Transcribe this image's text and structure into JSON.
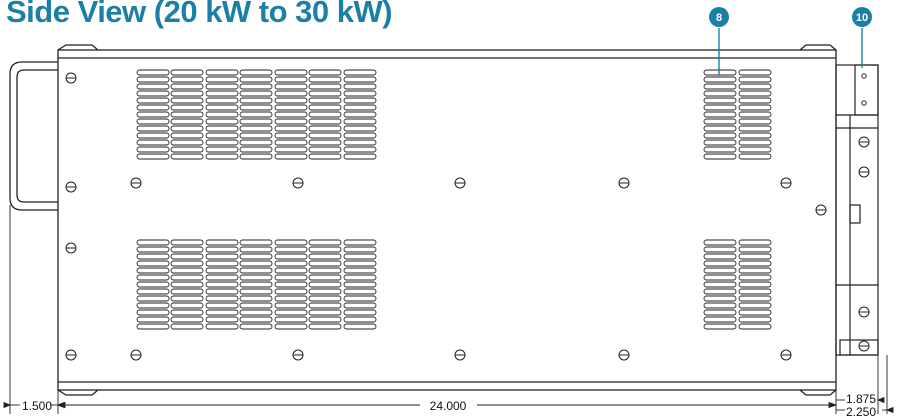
{
  "title": "Side View (20 kW to 30 kW)",
  "callouts": [
    {
      "label": "8"
    },
    {
      "label": "10"
    }
  ],
  "dimensions": {
    "left": "1.500",
    "main": "24.000",
    "right_top": "1.875",
    "right_bottom": "2.250"
  },
  "colors": {
    "accent": "#1b7fa6",
    "line": "#222222"
  }
}
